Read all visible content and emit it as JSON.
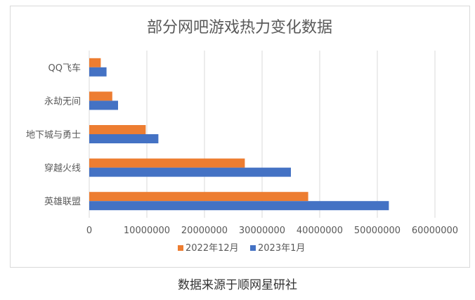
{
  "caption": "数据来源于顺网星研社",
  "chart_data": {
    "type": "bar",
    "orientation": "horizontal",
    "title": "部分网吧游戏热力变化数据",
    "categories": [
      "英雄联盟",
      "穿越火线",
      "地下城与勇士",
      "永劫无间",
      "QQ飞车"
    ],
    "series": [
      {
        "name": "2022年12月",
        "color": "#ed7d31",
        "values": [
          38000000,
          27000000,
          9800000,
          4000000,
          2000000
        ]
      },
      {
        "name": "2023年1月",
        "color": "#4472c4",
        "values": [
          52000000,
          35000000,
          12000000,
          5000000,
          3000000
        ]
      }
    ],
    "xlim": [
      0,
      60000000
    ],
    "xticks": [
      "0",
      "10000000",
      "20000000",
      "30000000",
      "40000000",
      "50000000",
      "60000000"
    ],
    "grid": true,
    "legend": "bottom"
  }
}
